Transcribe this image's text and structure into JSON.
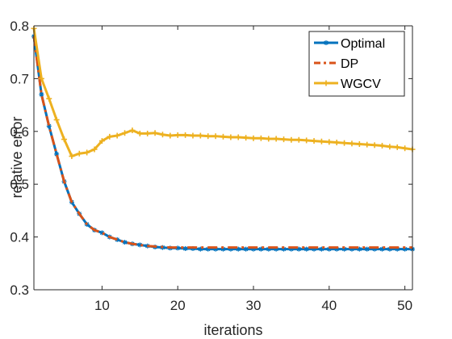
{
  "chart_data": {
    "type": "line",
    "title": "",
    "xlabel": "iterations",
    "ylabel": "relative error",
    "xlim": [
      1,
      51
    ],
    "ylim": [
      0.3,
      0.8
    ],
    "xticks": [
      10,
      20,
      30,
      40,
      50
    ],
    "xtick_labels": [
      "10",
      "20",
      "30",
      "40",
      "50"
    ],
    "yticks": [
      0.3,
      0.4,
      0.5,
      0.6,
      0.7,
      0.8
    ],
    "ytick_labels": [
      "0.3",
      "0.4",
      "0.5",
      "0.6",
      "0.7",
      "0.8"
    ],
    "grid": false,
    "legend_position": "top-right",
    "x": [
      1,
      2,
      3,
      4,
      5,
      6,
      7,
      8,
      9,
      10,
      11,
      12,
      13,
      14,
      15,
      16,
      17,
      18,
      19,
      20,
      21,
      22,
      23,
      24,
      25,
      26,
      27,
      28,
      29,
      30,
      31,
      32,
      33,
      34,
      35,
      36,
      37,
      38,
      39,
      40,
      41,
      42,
      43,
      44,
      45,
      46,
      47,
      48,
      49,
      50,
      51
    ],
    "series": [
      {
        "name": "Optimal",
        "color": "#0072BD",
        "linestyle": "solid",
        "marker": "asterisk",
        "values": [
          0.78,
          0.67,
          0.61,
          0.557,
          0.505,
          0.466,
          0.444,
          0.424,
          0.413,
          0.408,
          0.4,
          0.395,
          0.39,
          0.387,
          0.385,
          0.383,
          0.381,
          0.38,
          0.379,
          0.379,
          0.378,
          0.378,
          0.377,
          0.377,
          0.377,
          0.377,
          0.377,
          0.377,
          0.377,
          0.377,
          0.377,
          0.377,
          0.377,
          0.377,
          0.377,
          0.377,
          0.377,
          0.377,
          0.377,
          0.377,
          0.377,
          0.377,
          0.377,
          0.377,
          0.377,
          0.377,
          0.377,
          0.377,
          0.377,
          0.377,
          0.377
        ]
      },
      {
        "name": "DP",
        "color": "#D95319",
        "linestyle": "dashdot",
        "marker": "none",
        "values": [
          0.78,
          0.67,
          0.61,
          0.557,
          0.505,
          0.466,
          0.444,
          0.424,
          0.413,
          0.408,
          0.4,
          0.395,
          0.39,
          0.387,
          0.385,
          0.383,
          0.382,
          0.381,
          0.38,
          0.38,
          0.38,
          0.38,
          0.38,
          0.38,
          0.38,
          0.38,
          0.38,
          0.38,
          0.38,
          0.38,
          0.38,
          0.38,
          0.38,
          0.38,
          0.38,
          0.38,
          0.38,
          0.38,
          0.38,
          0.38,
          0.38,
          0.38,
          0.38,
          0.38,
          0.38,
          0.38,
          0.38,
          0.38,
          0.38,
          0.38,
          0.38
        ]
      },
      {
        "name": "WGCV",
        "color": "#EDB120",
        "linestyle": "solid",
        "marker": "plus",
        "values": [
          0.795,
          0.7,
          0.662,
          0.622,
          0.585,
          0.553,
          0.558,
          0.56,
          0.566,
          0.582,
          0.59,
          0.592,
          0.597,
          0.602,
          0.596,
          0.596,
          0.597,
          0.594,
          0.592,
          0.593,
          0.593,
          0.592,
          0.592,
          0.591,
          0.591,
          0.59,
          0.589,
          0.589,
          0.588,
          0.587,
          0.587,
          0.586,
          0.586,
          0.585,
          0.584,
          0.584,
          0.583,
          0.582,
          0.581,
          0.58,
          0.579,
          0.578,
          0.577,
          0.576,
          0.575,
          0.574,
          0.573,
          0.571,
          0.57,
          0.568,
          0.566
        ]
      }
    ]
  }
}
